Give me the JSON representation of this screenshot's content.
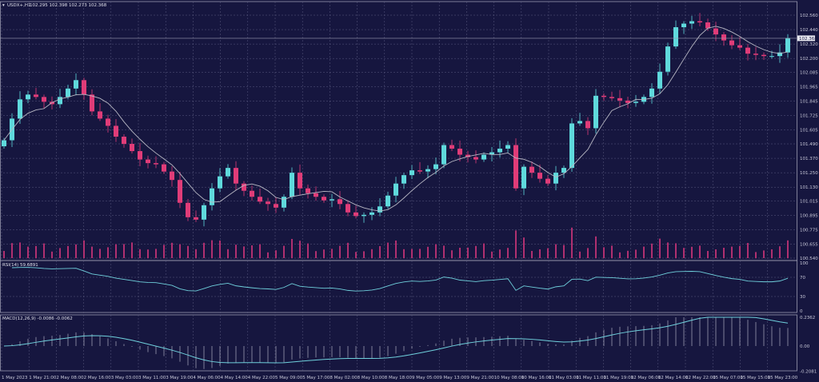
{
  "header": {
    "symbol": "USDX+,H1",
    "ohlc": "102.295 102.398 102.273 102.368"
  },
  "rsi_label": "RSI(14) 59.6891",
  "macd_label": "MACD(12,26,9) -0.0086 -0.0062",
  "current_price_label": "102.368",
  "colors": {
    "background": "#16163f",
    "bull": "#5fd9dc",
    "bear": "#e03c78",
    "ma": "#b8b8c4",
    "indicator": "#6fd0dc",
    "volume": "#b03070",
    "grid": "#5a5a80"
  },
  "chart_data": [
    {
      "type": "candlestick",
      "title": "",
      "price_axis_ticks": [
        "102.560",
        "102.440",
        "102.320",
        "102.200",
        "102.085",
        "101.965",
        "101.845",
        "101.725",
        "101.605",
        "101.490",
        "101.370",
        "101.250",
        "101.130",
        "101.015",
        "100.895",
        "100.775",
        "100.655",
        "100.540"
      ],
      "ylim": [
        100.54,
        102.56
      ],
      "current_price": 102.368,
      "time_axis_ticks": [
        "1 May 2023",
        "1 May 21:00",
        "2 May 08:00",
        "2 May 16:00",
        "3 May 03:00",
        "3 May 11:00",
        "3 May 19:00",
        "4 May 06:00",
        "4 May 14:00",
        "4 May 22:00",
        "5 May 09:00",
        "5 May 17:00",
        "8 May 02:00",
        "8 May 10:00",
        "8 May 18:00",
        "9 May 05:00",
        "9 May 13:00",
        "9 May 21:00",
        "10 May 08:00",
        "10 May 16:00",
        "11 May 03:00",
        "11 May 11:00",
        "11 May 19:00",
        "12 May 06:00",
        "12 May 14:00",
        "12 May 22:00",
        "15 May 07:00",
        "15 May 15:00",
        "15 May 23:00"
      ],
      "closes": [
        101.52,
        101.7,
        101.86,
        101.9,
        101.88,
        101.84,
        101.82,
        101.88,
        101.95,
        102.02,
        101.9,
        101.76,
        101.7,
        101.64,
        101.55,
        101.49,
        101.43,
        101.36,
        101.33,
        101.32,
        101.26,
        101.19,
        101.0,
        100.88,
        100.86,
        100.98,
        101.12,
        101.22,
        101.29,
        101.16,
        101.1,
        101.05,
        101.01,
        100.99,
        100.96,
        101.05,
        101.25,
        101.12,
        101.08,
        101.05,
        101.02,
        101.03,
        100.99,
        100.92,
        100.89,
        100.9,
        100.92,
        100.97,
        101.06,
        101.16,
        101.23,
        101.27,
        101.26,
        101.28,
        101.32,
        101.48,
        101.45,
        101.4,
        101.38,
        101.36,
        101.4,
        101.42,
        101.45,
        101.48,
        101.12,
        101.3,
        101.25,
        101.2,
        101.16,
        101.25,
        101.29,
        101.66,
        101.68,
        101.62,
        101.89,
        101.88,
        101.87,
        101.85,
        101.83,
        101.84,
        101.88,
        101.95,
        102.09,
        102.3,
        102.46,
        102.49,
        102.51,
        102.5,
        102.45,
        102.4,
        102.35,
        102.31,
        102.29,
        102.24,
        102.23,
        102.22,
        102.22,
        102.25,
        102.37
      ]
    },
    {
      "type": "line",
      "name": "RSI(14)",
      "ticks": [
        "100",
        "70",
        "30",
        "0"
      ],
      "ylim": [
        0,
        100
      ]
    },
    {
      "type": "line",
      "name": "MACD(12,26,9)",
      "ticks": [
        "0.2362",
        "0.00",
        "-0.2081"
      ],
      "ylim": [
        -0.2081,
        0.2362
      ]
    }
  ]
}
